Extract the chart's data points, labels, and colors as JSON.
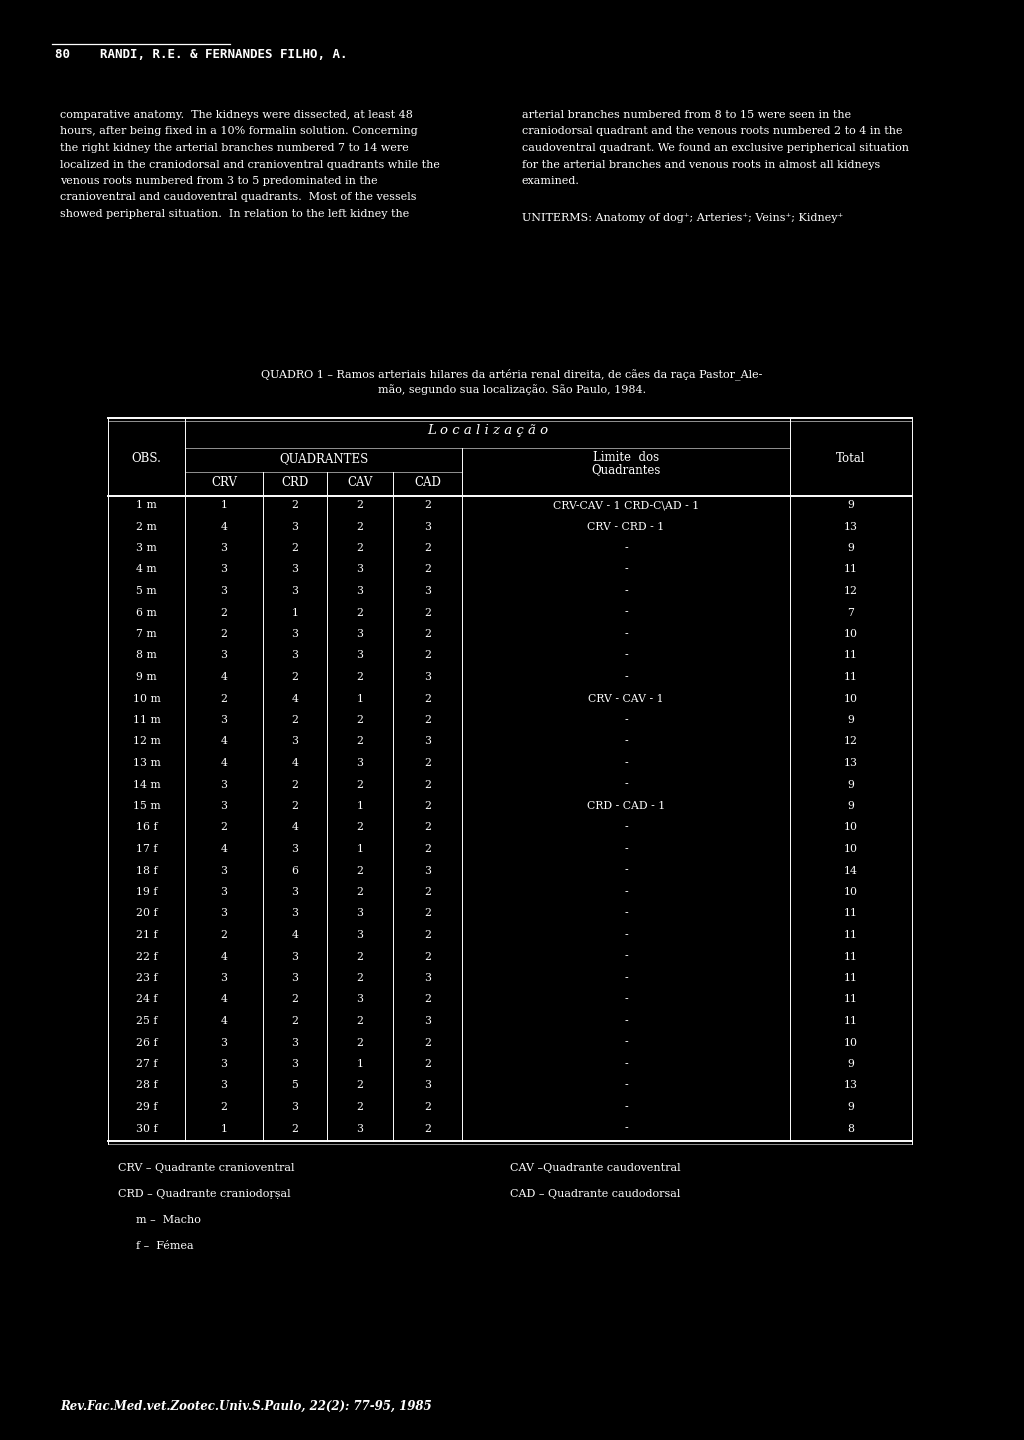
{
  "background_color": "#000000",
  "text_color": "#ffffff",
  "header_text": "80    RANDI, R.E. & FERNANDES FILHO, A.",
  "left_paragraph": [
    "comparative anatomy.  The kidneys were dissected, at least 48",
    "hours, after being fixed in a 10% formalin solution. Concerning",
    "the right kidney the arterial branches numbered 7 to 14 were",
    "localized in the craniodorsal and cranioventral quadrants while the",
    "venous roots numbered from 3 to 5 predominated in the",
    "cranioventral and caudoventral quadrants.  Most of the vessels",
    "showed peripheral situation.  In relation to the left kidney the"
  ],
  "right_paragraph": [
    "arterial branches numbered from 8 to 15 were seen in the",
    "craniodorsal quadrant and the venous roots numbered 2 to 4 in the",
    "caudoventral quadrant. We found an exclusive peripherical situation",
    "for the arterial branches and venous roots in almost all kidneys",
    "examined."
  ],
  "uniterms": "UNITERMS: Anatomy of dog⁺; Arteries⁺; Veins⁺; Kidney⁺",
  "table_caption_line1": "QUADRO 1 – Ramos arteriais hilares da artéria renal direita, de cães da raça Pastor_Ale-",
  "table_caption_line2": "mão, segundo sua localização. São Paulo, 1984.",
  "col_loc": "L o c a l i z a ç ã o",
  "col_quad": "QUADRANTES",
  "col_limite": "Limite  dos",
  "col_quadrantes": "Quadrantes",
  "col_total": "Total",
  "col_obs": "OBS.",
  "col_crv": "CRV",
  "col_crd": "CRD",
  "col_cav": "CAV",
  "col_cad": "CAD",
  "rows": [
    [
      "1 m",
      "1",
      "2",
      "2",
      "2",
      "CRV-CAV - 1 CRD-C\\AD - 1",
      "9"
    ],
    [
      "2 m",
      "4",
      "3",
      "2",
      "3",
      "CRV - CRD - 1",
      "13"
    ],
    [
      "3 m",
      "3",
      "2",
      "2",
      "2",
      "-",
      "9"
    ],
    [
      "4 m",
      "3",
      "3",
      "3",
      "2",
      "-",
      "11"
    ],
    [
      "5 m",
      "3",
      "3",
      "3",
      "3",
      "-",
      "12"
    ],
    [
      "6 m",
      "2",
      "1",
      "2",
      "2",
      "-",
      "7"
    ],
    [
      "7 m",
      "2",
      "3",
      "3",
      "2",
      "-",
      "10"
    ],
    [
      "8 m",
      "3",
      "3",
      "3",
      "2",
      "-",
      "11"
    ],
    [
      "9 m",
      "4",
      "2",
      "2",
      "3",
      "-",
      "11"
    ],
    [
      "10 m",
      "2",
      "4",
      "1",
      "2",
      "CRV - CAV - 1",
      "10"
    ],
    [
      "11 m",
      "3",
      "2",
      "2",
      "2",
      "-",
      "9"
    ],
    [
      "12 m",
      "4",
      "3",
      "2",
      "3",
      "-",
      "12"
    ],
    [
      "13 m",
      "4",
      "4",
      "3",
      "2",
      "-",
      "13"
    ],
    [
      "14 m",
      "3",
      "2",
      "2",
      "2",
      "-",
      "9"
    ],
    [
      "15 m",
      "3",
      "2",
      "1",
      "2",
      "CRD - CAD - 1",
      "9"
    ],
    [
      "16 f",
      "2",
      "4",
      "2",
      "2",
      "-",
      "10"
    ],
    [
      "17 f",
      "4",
      "3",
      "1",
      "2",
      "-",
      "10"
    ],
    [
      "18 f",
      "3",
      "6",
      "2",
      "3",
      "-",
      "14"
    ],
    [
      "19 f",
      "3",
      "3",
      "2",
      "2",
      "-",
      "10"
    ],
    [
      "20 f",
      "3",
      "3",
      "3",
      "2",
      "-",
      "11"
    ],
    [
      "21 f",
      "2",
      "4",
      "3",
      "2",
      "-",
      "11"
    ],
    [
      "22 f",
      "4",
      "3",
      "2",
      "2",
      "-",
      "11"
    ],
    [
      "23 f",
      "3",
      "3",
      "2",
      "3",
      "-",
      "11"
    ],
    [
      "24 f",
      "4",
      "2",
      "3",
      "2",
      "-",
      "11"
    ],
    [
      "25 f",
      "4",
      "2",
      "2",
      "3",
      "-",
      "11"
    ],
    [
      "26 f",
      "3",
      "3",
      "2",
      "2",
      "-",
      "10"
    ],
    [
      "27 f",
      "3",
      "3",
      "1",
      "2",
      "-",
      "9"
    ],
    [
      "28 f",
      "3",
      "5",
      "2",
      "3",
      "-",
      "13"
    ],
    [
      "29 f",
      "2",
      "3",
      "2",
      "2",
      "-",
      "9"
    ],
    [
      "30 f",
      "1",
      "2",
      "3",
      "2",
      "-",
      "8"
    ]
  ],
  "fn_crv": "CRV – Quadrante cranioventral",
  "fn_crd": "CRD – Quadrante craniodoṛṣal",
  "fn_m": "m –  Macho",
  "fn_f": "f –  Fémea",
  "fn_cav": "CAV –Quadrante caudoventral",
  "fn_cad": "CAD – Quadrante caudodorsal",
  "footer": "Rev.Fac.Med.vet.Zootec.Univ.S.Paulo, 22(2): 77-95, 1985"
}
